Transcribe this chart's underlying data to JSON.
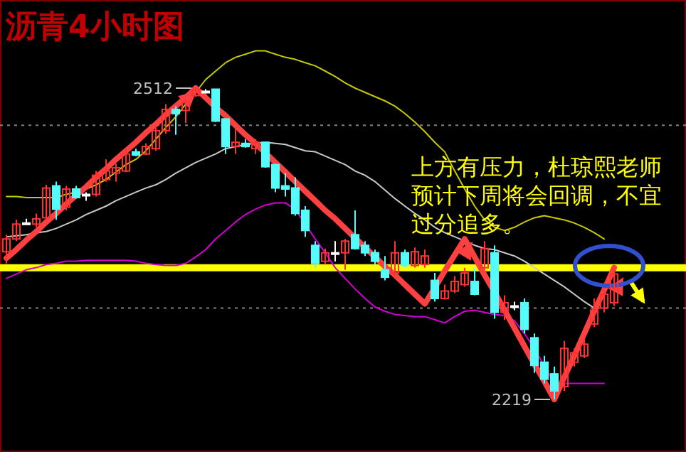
{
  "chart_data": {
    "type": "candlestick",
    "title": "沥青4小时图",
    "categories": [
      null,
      null,
      null,
      null,
      null,
      null,
      null,
      null,
      null,
      null,
      null,
      null,
      null,
      null,
      null,
      null,
      null,
      null,
      null,
      null,
      null,
      null,
      null,
      null,
      null,
      null,
      null,
      null,
      null,
      null,
      null,
      null,
      null,
      null,
      null,
      null,
      null,
      null,
      null,
      null,
      null,
      null,
      null,
      null,
      null,
      null,
      null,
      null,
      null,
      null,
      null,
      null,
      null,
      null,
      null,
      null,
      null,
      null,
      null,
      null,
      null,
      null
    ],
    "ohlc": [
      [
        2358,
        2374,
        2347,
        2370
      ],
      [
        2370,
        2388,
        2368,
        2384
      ],
      [
        2385,
        2389,
        2384,
        2385
      ],
      [
        2384,
        2394,
        2381,
        2389
      ],
      [
        2390,
        2421,
        2388,
        2418
      ],
      [
        2420,
        2424,
        2388,
        2398
      ],
      [
        2400,
        2420,
        2397,
        2417
      ],
      [
        2417,
        2420,
        2408,
        2409
      ],
      [
        2412,
        2414,
        2406,
        2412
      ],
      [
        2412,
        2434,
        2410,
        2430
      ],
      [
        2426,
        2445,
        2424,
        2434
      ],
      [
        2432,
        2441,
        2424,
        2437
      ],
      [
        2434,
        2455,
        2433,
        2450
      ],
      [
        2452,
        2455,
        2448,
        2449
      ],
      [
        2450,
        2460,
        2449,
        2457
      ],
      [
        2455,
        2477,
        2453,
        2472
      ],
      [
        2472,
        2497,
        2469,
        2492
      ],
      [
        2492,
        2495,
        2468,
        2488
      ],
      [
        2491,
        2501,
        2479,
        2499
      ],
      [
        2505,
        2512,
        2504,
        2510
      ],
      [
        2509,
        2511,
        2507,
        2509
      ],
      [
        2511,
        2511,
        2480,
        2481
      ],
      [
        2483,
        2483,
        2450,
        2457
      ],
      [
        2457,
        2475,
        2450,
        2461
      ],
      [
        2460,
        2464,
        2456,
        2457
      ],
      [
        2455,
        2464,
        2450,
        2461
      ],
      [
        2461,
        2461,
        2437,
        2438
      ],
      [
        2440,
        2441,
        2414,
        2418
      ],
      [
        2420,
        2432,
        2410,
        2417
      ],
      [
        2418,
        2428,
        2392,
        2394
      ],
      [
        2397,
        2401,
        2372,
        2378
      ],
      [
        2364,
        2368,
        2343,
        2347
      ],
      [
        2349,
        2361,
        2346,
        2357
      ],
      [
        2357,
        2368,
        2349,
        2357
      ],
      [
        2357,
        2370,
        2341,
        2368
      ],
      [
        2374,
        2397,
        2360,
        2361
      ],
      [
        2364,
        2368,
        2354,
        2357
      ],
      [
        2357,
        2360,
        2346,
        2349
      ],
      [
        2341,
        2354,
        2331,
        2334
      ],
      [
        2338,
        2368,
        2334,
        2357
      ],
      [
        2357,
        2360,
        2343,
        2345
      ],
      [
        2345,
        2362,
        2343,
        2358
      ],
      [
        2346,
        2360,
        2343,
        2354
      ],
      [
        2331,
        2338,
        2311,
        2314
      ],
      [
        2314,
        2327,
        2313,
        2321
      ],
      [
        2321,
        2335,
        2319,
        2330
      ],
      [
        2327,
        2343,
        2325,
        2338
      ],
      [
        2330,
        2343,
        2317,
        2318
      ],
      [
        2343,
        2368,
        2341,
        2361
      ],
      [
        2357,
        2364,
        2295,
        2301
      ],
      [
        2301,
        2317,
        2294,
        2310
      ],
      [
        2307,
        2311,
        2303,
        2307
      ],
      [
        2310,
        2314,
        2281,
        2285
      ],
      [
        2277,
        2281,
        2244,
        2251
      ],
      [
        2254,
        2260,
        2234,
        2238
      ],
      [
        2243,
        2250,
        2219,
        2227
      ],
      [
        2231,
        2274,
        2227,
        2267
      ],
      [
        2254,
        2267,
        2250,
        2263
      ],
      [
        2260,
        2277,
        2258,
        2271
      ],
      [
        2290,
        2314,
        2287,
        2303
      ],
      [
        2305,
        2321,
        2301,
        2318
      ],
      [
        2310,
        2341,
        2307,
        2337
      ]
    ],
    "colors": [
      "#ff3232",
      "#ff3232",
      "#ffffff",
      "#ff3232",
      "#ff3232",
      "#54fcfc",
      "#ff3232",
      "#54fcfc",
      "#ffffff",
      "#ff3232",
      "#ff3232",
      "#ff3232",
      "#ff3232",
      "#54fcfc",
      "#ff3232",
      "#ff3232",
      "#ff3232",
      "#54fcfc",
      "#ff3232",
      "#ff3232",
      "#ffffff",
      "#54fcfc",
      "#54fcfc",
      "#ff3232",
      "#54fcfc",
      "#ff3232",
      "#54fcfc",
      "#54fcfc",
      "#54fcfc",
      "#54fcfc",
      "#54fcfc",
      "#54fcfc",
      "#ff3232",
      "#ffffff",
      "#ff3232",
      "#54fcfc",
      "#54fcfc",
      "#54fcfc",
      "#54fcfc",
      "#ff3232",
      "#54fcfc",
      "#ff3232",
      "#ff3232",
      "#54fcfc",
      "#ff3232",
      "#ff3232",
      "#ff3232",
      "#54fcfc",
      "#ff3232",
      "#54fcfc",
      "#ff3232",
      "#ffffff",
      "#54fcfc",
      "#54fcfc",
      "#54fcfc",
      "#54fcfc",
      "#ff3232",
      "#ff3232",
      "#ff3232",
      "#ff3232",
      "#ff3232",
      "#ff3232"
    ],
    "series": [
      {
        "type": "line",
        "color": "#c8c800",
        "values": [
          2410,
          2410,
          2409,
          2409,
          2409,
          2409,
          2412,
          2414,
          2417,
          2421,
          2426,
          2433,
          2440,
          2445,
          2453,
          2464,
          2475,
          2485,
          2497,
          2508,
          2520,
          2528,
          2536,
          2541,
          2544,
          2547,
          2547,
          2544,
          2541,
          2539,
          2536,
          2533,
          2528,
          2523,
          2517,
          2512,
          2508,
          2504,
          2500,
          2495,
          2488,
          2480,
          2471,
          2461,
          2452,
          2434,
          2417,
          2401,
          2388,
          2381,
          2378,
          2381,
          2386,
          2390,
          2392,
          2390,
          2388,
          2385,
          2381,
          2376,
          2370,
          null
        ]
      },
      {
        "type": "line",
        "color": "#c8c8c8",
        "values": [
          2372,
          2373,
          2374,
          2376,
          2377,
          2380,
          2384,
          2388,
          2393,
          2397,
          2401,
          2406,
          2410,
          2414,
          2418,
          2421,
          2426,
          2432,
          2437,
          2442,
          2446,
          2450,
          2455,
          2457,
          2459,
          2460,
          2461,
          2460,
          2459,
          2456,
          2453,
          2452,
          2448,
          2444,
          2440,
          2434,
          2430,
          2424,
          2416,
          2408,
          2401,
          2394,
          2388,
          2381,
          2376,
          2372,
          2368,
          2364,
          2361,
          2360,
          2357,
          2354,
          2349,
          2343,
          2337,
          2331,
          2325,
          2318,
          2311,
          2305,
          null,
          null
        ]
      },
      {
        "type": "line",
        "color": "#d200d2",
        "values": [
          2333,
          2337,
          2341,
          2343,
          2346,
          2347,
          2349,
          2349,
          2350,
          2350,
          2350,
          2350,
          2350,
          2349,
          2347,
          2346,
          2345,
          2345,
          2347,
          2353,
          2360,
          2370,
          2378,
          2386,
          2393,
          2398,
          2402,
          2404,
          2404,
          2398,
          2384,
          2370,
          2357,
          2343,
          2333,
          2323,
          2314,
          2306,
          2302,
          2299,
          2298,
          2297,
          2297,
          2294,
          2291,
          2297,
          2302,
          2303,
          2301,
          2299,
          2298,
          2293,
          2281,
          2267,
          2250,
          2234,
          2234,
          2234,
          2234,
          2234,
          2234,
          null
        ]
      },
      {
        "type": "line",
        "color": "#ff4040",
        "values": [
          2352,
          2360,
          2369,
          2377,
          2386,
          2394,
          2403,
          2411,
          2419,
          2428,
          2436,
          2445,
          2453,
          2461,
          2470,
          2478,
          2487,
          2495,
          2503,
          2512,
          2503,
          2494,
          2486,
          2477,
          2468,
          2460,
          2451,
          2442,
          2433,
          2424,
          2415,
          2406,
          2397,
          2389,
          2380,
          2371,
          2362,
          2353,
          2344,
          2336,
          2327,
          2318,
          2309,
          2324,
          2340,
          2355,
          2370,
          2353,
          2336,
          2320,
          2303,
          2286,
          2269,
          2252,
          2236,
          2219,
          2240,
          2260,
          2281,
          2302,
          2322,
          2343
        ]
      }
    ],
    "ref_lines": [
      {
        "axis": "y",
        "value": 2343,
        "color": "#ffff00",
        "line_style": "solid"
      },
      {
        "axis": "y",
        "value": 2477,
        "color": "#808080",
        "line_style": "dotted"
      },
      {
        "axis": "y",
        "value": 2305,
        "color": "#808080",
        "line_style": "dotted"
      }
    ],
    "annotations": [
      "上方有压力，杜琼熙老师预计下周将会回调，不宜过分追多。",
      "2512",
      "2219"
    ]
  }
}
